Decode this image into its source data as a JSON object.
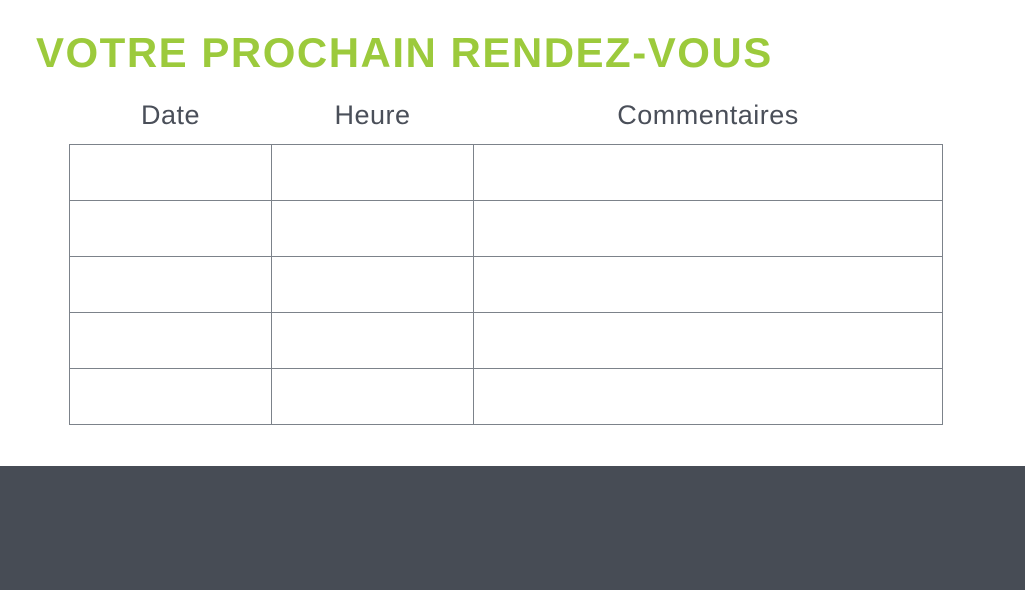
{
  "page": {
    "title": "VOTRE PROCHAIN RENDEZ-VOUS",
    "title_color": "#9CCA3C",
    "background_color": "#FFFFFF"
  },
  "table": {
    "headers": [
      "Date",
      "Heure",
      "Commentaires"
    ],
    "rows": [
      [
        "",
        "",
        ""
      ],
      [
        "",
        "",
        ""
      ],
      [
        "",
        "",
        ""
      ],
      [
        "",
        "",
        ""
      ],
      [
        "",
        "",
        ""
      ]
    ],
    "header_text_color": "#4A4F59",
    "border_color": "#7C828A"
  },
  "footer": {
    "background_color": "#474C55",
    "text": ""
  }
}
